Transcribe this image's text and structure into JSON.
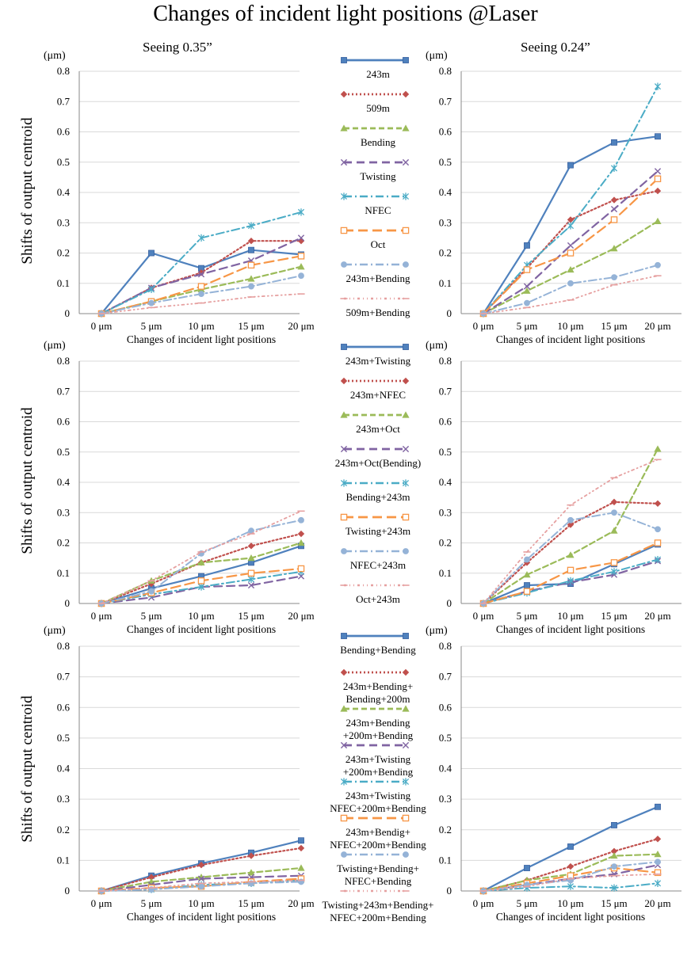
{
  "title": "Changes of incident light positions @Laser",
  "column_titles": [
    "Seeing 0.35”",
    "Seeing 0.24”"
  ],
  "y_axis_title": "Shifts of output centroid",
  "unit_label": "(μm)",
  "x_axis_title": "Changes of incident light positions",
  "x_ticks": [
    "0 μm",
    "5 μm",
    "10 μm",
    "15 μm",
    "20 μm"
  ],
  "y_ticks": [
    "0",
    "0.1",
    "0.2",
    "0.3",
    "0.4",
    "0.5",
    "0.6",
    "0.7",
    "0.8"
  ],
  "series_styles": [
    {
      "color": "#4f81bd",
      "marker": "square"
    },
    {
      "color": "#c0504d",
      "marker": "diamond"
    },
    {
      "color": "#9bbb59",
      "marker": "triangle"
    },
    {
      "color": "#8064a2",
      "marker": "x"
    },
    {
      "color": "#4bacc6",
      "marker": "star"
    },
    {
      "color": "#f79646",
      "marker": "hsquare"
    },
    {
      "color": "#95b3d7",
      "marker": "circle"
    },
    {
      "color": "#e6a0a0",
      "marker": "line"
    }
  ],
  "chart_data": [
    {
      "type": "line",
      "row": 0,
      "col": 0,
      "ylim": [
        0,
        0.8
      ],
      "categories": [
        "0 μm",
        "5 μm",
        "10 μm",
        "15 μm",
        "20 μm"
      ],
      "series": [
        {
          "name": "243m",
          "values": [
            0,
            0.2,
            0.15,
            0.21,
            0.195
          ]
        },
        {
          "name": "509m",
          "values": [
            0,
            0.085,
            0.135,
            0.24,
            0.24
          ]
        },
        {
          "name": "Bending",
          "values": [
            0,
            0.04,
            0.08,
            0.115,
            0.155
          ]
        },
        {
          "name": "Twisting",
          "values": [
            0,
            0.085,
            0.13,
            0.175,
            0.25
          ]
        },
        {
          "name": "NFEC",
          "values": [
            0,
            0.08,
            0.25,
            0.29,
            0.335
          ]
        },
        {
          "name": "Oct",
          "values": [
            0,
            0.04,
            0.09,
            0.16,
            0.19
          ]
        },
        {
          "name": "243m+Bending",
          "values": [
            0,
            0.035,
            0.065,
            0.09,
            0.125
          ]
        },
        {
          "name": "509m+Bending",
          "values": [
            0,
            0.02,
            0.035,
            0.055,
            0.065
          ]
        }
      ]
    },
    {
      "type": "line",
      "row": 0,
      "col": 1,
      "ylim": [
        0,
        0.8
      ],
      "categories": [
        "0 μm",
        "5 μm",
        "10 μm",
        "15 μm",
        "20 μm"
      ],
      "series": [
        {
          "name": "243m",
          "values": [
            0,
            0.225,
            0.49,
            0.565,
            0.585
          ]
        },
        {
          "name": "509m",
          "values": [
            0,
            0.15,
            0.31,
            0.375,
            0.405
          ]
        },
        {
          "name": "Bending",
          "values": [
            0,
            0.075,
            0.145,
            0.215,
            0.305
          ]
        },
        {
          "name": "Twisting",
          "values": [
            0,
            0.09,
            0.225,
            0.345,
            0.47
          ]
        },
        {
          "name": "NFEC",
          "values": [
            0,
            0.16,
            0.29,
            0.48,
            0.75
          ]
        },
        {
          "name": "Oct",
          "values": [
            0,
            0.145,
            0.2,
            0.31,
            0.445
          ]
        },
        {
          "name": "243m+Bending",
          "values": [
            0,
            0.035,
            0.1,
            0.12,
            0.16
          ]
        },
        {
          "name": "509m+Bending",
          "values": [
            0,
            0.02,
            0.045,
            0.095,
            0.125
          ]
        }
      ]
    },
    {
      "type": "line",
      "row": 1,
      "col": 0,
      "ylim": [
        0,
        0.8
      ],
      "categories": [
        "0 μm",
        "5 μm",
        "10 μm",
        "15 μm",
        "20 μm"
      ],
      "series": [
        {
          "name": "243m+Twisting",
          "values": [
            0,
            0.05,
            0.09,
            0.135,
            0.19
          ]
        },
        {
          "name": "243m+NFEC",
          "values": [
            0,
            0.065,
            0.135,
            0.19,
            0.23
          ]
        },
        {
          "name": "243m+Oct",
          "values": [
            0,
            0.075,
            0.135,
            0.15,
            0.2
          ]
        },
        {
          "name": "243m+Oct(Bending)",
          "values": [
            0,
            0.02,
            0.055,
            0.06,
            0.09
          ]
        },
        {
          "name": "Bending+243m",
          "values": [
            0,
            0.03,
            0.055,
            0.08,
            0.105
          ]
        },
        {
          "name": "Twisting+243m",
          "values": [
            0,
            0.035,
            0.075,
            0.1,
            0.115
          ]
        },
        {
          "name": "NFEC+243m",
          "values": [
            0,
            0.04,
            0.165,
            0.24,
            0.275
          ]
        },
        {
          "name": "Oct+243m",
          "values": [
            0,
            0.075,
            0.17,
            0.23,
            0.305
          ]
        }
      ]
    },
    {
      "type": "line",
      "row": 1,
      "col": 1,
      "ylim": [
        0,
        0.8
      ],
      "categories": [
        "0 μm",
        "5 μm",
        "10 μm",
        "15 μm",
        "20 μm"
      ],
      "series": [
        {
          "name": "243m+Twisting",
          "values": [
            0,
            0.06,
            0.065,
            0.13,
            0.195
          ]
        },
        {
          "name": "243m+NFEC",
          "values": [
            0,
            0.135,
            0.26,
            0.335,
            0.33
          ]
        },
        {
          "name": "243m+Oct",
          "values": [
            0,
            0.095,
            0.16,
            0.24,
            0.51
          ]
        },
        {
          "name": "243m+Oct(Bending)",
          "values": [
            0,
            0.04,
            0.07,
            0.095,
            0.14
          ]
        },
        {
          "name": "Bending+243m",
          "values": [
            0,
            0.035,
            0.075,
            0.105,
            0.145
          ]
        },
        {
          "name": "Twisting+243m",
          "values": [
            0,
            0.04,
            0.11,
            0.135,
            0.2
          ]
        },
        {
          "name": "NFEC+243m",
          "values": [
            0,
            0.145,
            0.275,
            0.3,
            0.245
          ]
        },
        {
          "name": "Oct+243m",
          "values": [
            0,
            0.17,
            0.325,
            0.415,
            0.475
          ]
        }
      ]
    },
    {
      "type": "line",
      "row": 2,
      "col": 0,
      "ylim": [
        0,
        0.8
      ],
      "categories": [
        "0 μm",
        "5 μm",
        "10 μm",
        "15 μm",
        "20 μm"
      ],
      "series": [
        {
          "name": "Bending+Bending",
          "values": [
            0,
            0.05,
            0.09,
            0.125,
            0.165
          ]
        },
        {
          "name": "243m+Bending+Bending+200m",
          "values": [
            0,
            0.045,
            0.085,
            0.115,
            0.14
          ]
        },
        {
          "name": "243m+Bending+200m+Bending",
          "values": [
            0,
            0.03,
            0.045,
            0.06,
            0.075
          ]
        },
        {
          "name": "243m+Twisting+200m+Bending",
          "values": [
            0,
            0.02,
            0.04,
            0.045,
            0.05
          ]
        },
        {
          "name": "243m+Twisting NFEC+200m+Bending",
          "values": [
            0,
            0.005,
            0.02,
            0.025,
            0.035
          ]
        },
        {
          "name": "243m+Bendig+NFEC+200m+Bending",
          "values": [
            0,
            0.01,
            0.015,
            0.03,
            0.04
          ]
        },
        {
          "name": "Twisting+Bending+NFEC+Bending",
          "values": [
            0,
            0.005,
            0.015,
            0.025,
            0.03
          ]
        },
        {
          "name": "Twisting+243m+Bending+NFEC+200m+Bending",
          "values": [
            0,
            0.01,
            0.025,
            0.03,
            0.035
          ]
        }
      ]
    },
    {
      "type": "line",
      "row": 2,
      "col": 1,
      "ylim": [
        0,
        0.8
      ],
      "categories": [
        "0 μm",
        "5 μm",
        "10 μm",
        "15 μm",
        "20 μm"
      ],
      "series": [
        {
          "name": "Bending+Bending",
          "values": [
            0,
            0.075,
            0.145,
            0.215,
            0.275
          ]
        },
        {
          "name": "243m+Bending+Bending+200m",
          "values": [
            0,
            0.035,
            0.08,
            0.13,
            0.17
          ]
        },
        {
          "name": "243m+Bending+200m+Bending",
          "values": [
            0,
            0.035,
            0.055,
            0.115,
            0.12
          ]
        },
        {
          "name": "243m+Twisting+200m+Bending",
          "values": [
            0,
            0.02,
            0.04,
            0.055,
            0.085
          ]
        },
        {
          "name": "243m+Twisting NFEC+200m+Bending",
          "values": [
            0,
            0.01,
            0.015,
            0.01,
            0.025
          ]
        },
        {
          "name": "243m+Bendig+NFEC+200m+Bending",
          "values": [
            0,
            0.025,
            0.05,
            0.075,
            0.06
          ]
        },
        {
          "name": "Twisting+Bending+NFEC+Bending",
          "values": [
            0,
            0.02,
            0.035,
            0.08,
            0.095
          ]
        },
        {
          "name": "Twisting+243m+Bending+NFEC+200m+Bending",
          "values": [
            0,
            0.015,
            0.04,
            0.05,
            0.055
          ]
        }
      ]
    }
  ],
  "legends": [
    [
      "243m",
      "509m",
      "Bending",
      "Twisting",
      "NFEC",
      "Oct",
      "243m+Bending",
      "509m+Bending"
    ],
    [
      "243m+Twisting",
      "243m+NFEC",
      "243m+Oct",
      "243m+Oct(Bending)",
      "Bending+243m",
      "Twisting+243m",
      "NFEC+243m",
      "Oct+243m"
    ],
    [
      "Bending+Bending",
      "243m+Bending+\nBending+200m",
      "243m+Bending\n+200m+Bending",
      "243m+Twisting\n+200m+Bending",
      "243m+Twisting\nNFEC+200m+Bending",
      "243m+Bendig+\nNFEC+200m+Bending",
      "Twisting+Bending+\nNFEC+Bending",
      "Twisting+243m+Bending+\nNFEC+200m+Bending"
    ]
  ]
}
